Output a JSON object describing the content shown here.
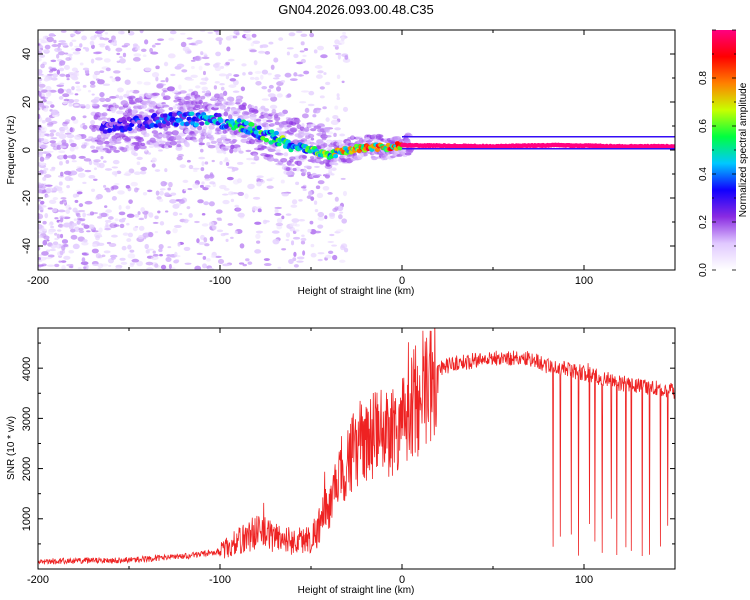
{
  "title": "GN04.2026.093.00.48.C35",
  "chart_data": [
    {
      "type": "heatmap",
      "title": "GN04.2026.093.00.48.C35",
      "xlabel": "Height of straight line (km)",
      "ylabel": "Frequency (Hz)",
      "xlim": [
        -200,
        150
      ],
      "ylim": [
        -50,
        50
      ],
      "x_ticks": [
        "-200",
        "-100",
        "0",
        "100"
      ],
      "y_ticks": [
        "-40",
        "-20",
        "0",
        "20",
        "40"
      ],
      "colorbar": {
        "label": "Normalized spectral amplitude",
        "range": [
          0,
          1
        ],
        "ticks": [
          "0.0",
          "0.2",
          "0.4",
          "0.6",
          "0.8"
        ],
        "colors": [
          "#ffffff",
          "#e0c8ff",
          "#8a2be2",
          "#1000ff",
          "#00c8ff",
          "#00ff40",
          "#c8ff00",
          "#ff8000",
          "#ff0000",
          "#ff0080"
        ]
      },
      "ridge": [
        {
          "x": -160,
          "f": 10,
          "a": 0.35
        },
        {
          "x": -140,
          "f": 12,
          "a": 0.4
        },
        {
          "x": -120,
          "f": 13,
          "a": 0.45
        },
        {
          "x": -100,
          "f": 12,
          "a": 0.55
        },
        {
          "x": -85,
          "f": 9,
          "a": 0.6
        },
        {
          "x": -70,
          "f": 5,
          "a": 0.65
        },
        {
          "x": -60,
          "f": 2,
          "a": 0.7
        },
        {
          "x": -50,
          "f": 0,
          "a": 0.7
        },
        {
          "x": -40,
          "f": -2,
          "a": 0.75
        },
        {
          "x": -30,
          "f": 0,
          "a": 0.85
        },
        {
          "x": -20,
          "f": 1,
          "a": 0.95
        },
        {
          "x": -10,
          "f": 1,
          "a": 0.95
        },
        {
          "x": 0,
          "f": 2,
          "a": 1.0
        },
        {
          "x": 50,
          "f": 1.5,
          "a": 1.0
        },
        {
          "x": 85,
          "f": 2,
          "a": 1.0
        },
        {
          "x": 120,
          "f": 1.5,
          "a": 1.0
        },
        {
          "x": 150,
          "f": 1.5,
          "a": 1.0
        }
      ]
    },
    {
      "type": "line",
      "xlabel": "Height of straight line (km)",
      "ylabel": "SNR (10 * v/v)",
      "xlim": [
        -200,
        150
      ],
      "ylim": [
        0,
        4800
      ],
      "x_ticks": [
        "-200",
        "-100",
        "0",
        "100"
      ],
      "y_ticks": [
        "1000",
        "2000",
        "3000",
        "4000"
      ],
      "color": "#ee2222",
      "trend": [
        {
          "x": -200,
          "y": 150
        },
        {
          "x": -150,
          "y": 180
        },
        {
          "x": -120,
          "y": 250
        },
        {
          "x": -100,
          "y": 350
        },
        {
          "x": -90,
          "y": 550
        },
        {
          "x": -80,
          "y": 750
        },
        {
          "x": -70,
          "y": 650
        },
        {
          "x": -60,
          "y": 550
        },
        {
          "x": -50,
          "y": 600
        },
        {
          "x": -40,
          "y": 1200
        },
        {
          "x": -30,
          "y": 2200
        },
        {
          "x": -20,
          "y": 2600
        },
        {
          "x": -10,
          "y": 2700
        },
        {
          "x": 0,
          "y": 2900
        },
        {
          "x": 10,
          "y": 3500
        },
        {
          "x": 20,
          "y": 4000
        },
        {
          "x": 30,
          "y": 4100
        },
        {
          "x": 50,
          "y": 4200
        },
        {
          "x": 70,
          "y": 4200
        },
        {
          "x": 80,
          "y": 4050
        },
        {
          "x": 100,
          "y": 3900
        },
        {
          "x": 120,
          "y": 3700
        },
        {
          "x": 150,
          "y": 3550
        }
      ],
      "dropouts_x": [
        83,
        87,
        93,
        97,
        103,
        106,
        110,
        115,
        118,
        123,
        126,
        132,
        136,
        142,
        146
      ]
    }
  ]
}
